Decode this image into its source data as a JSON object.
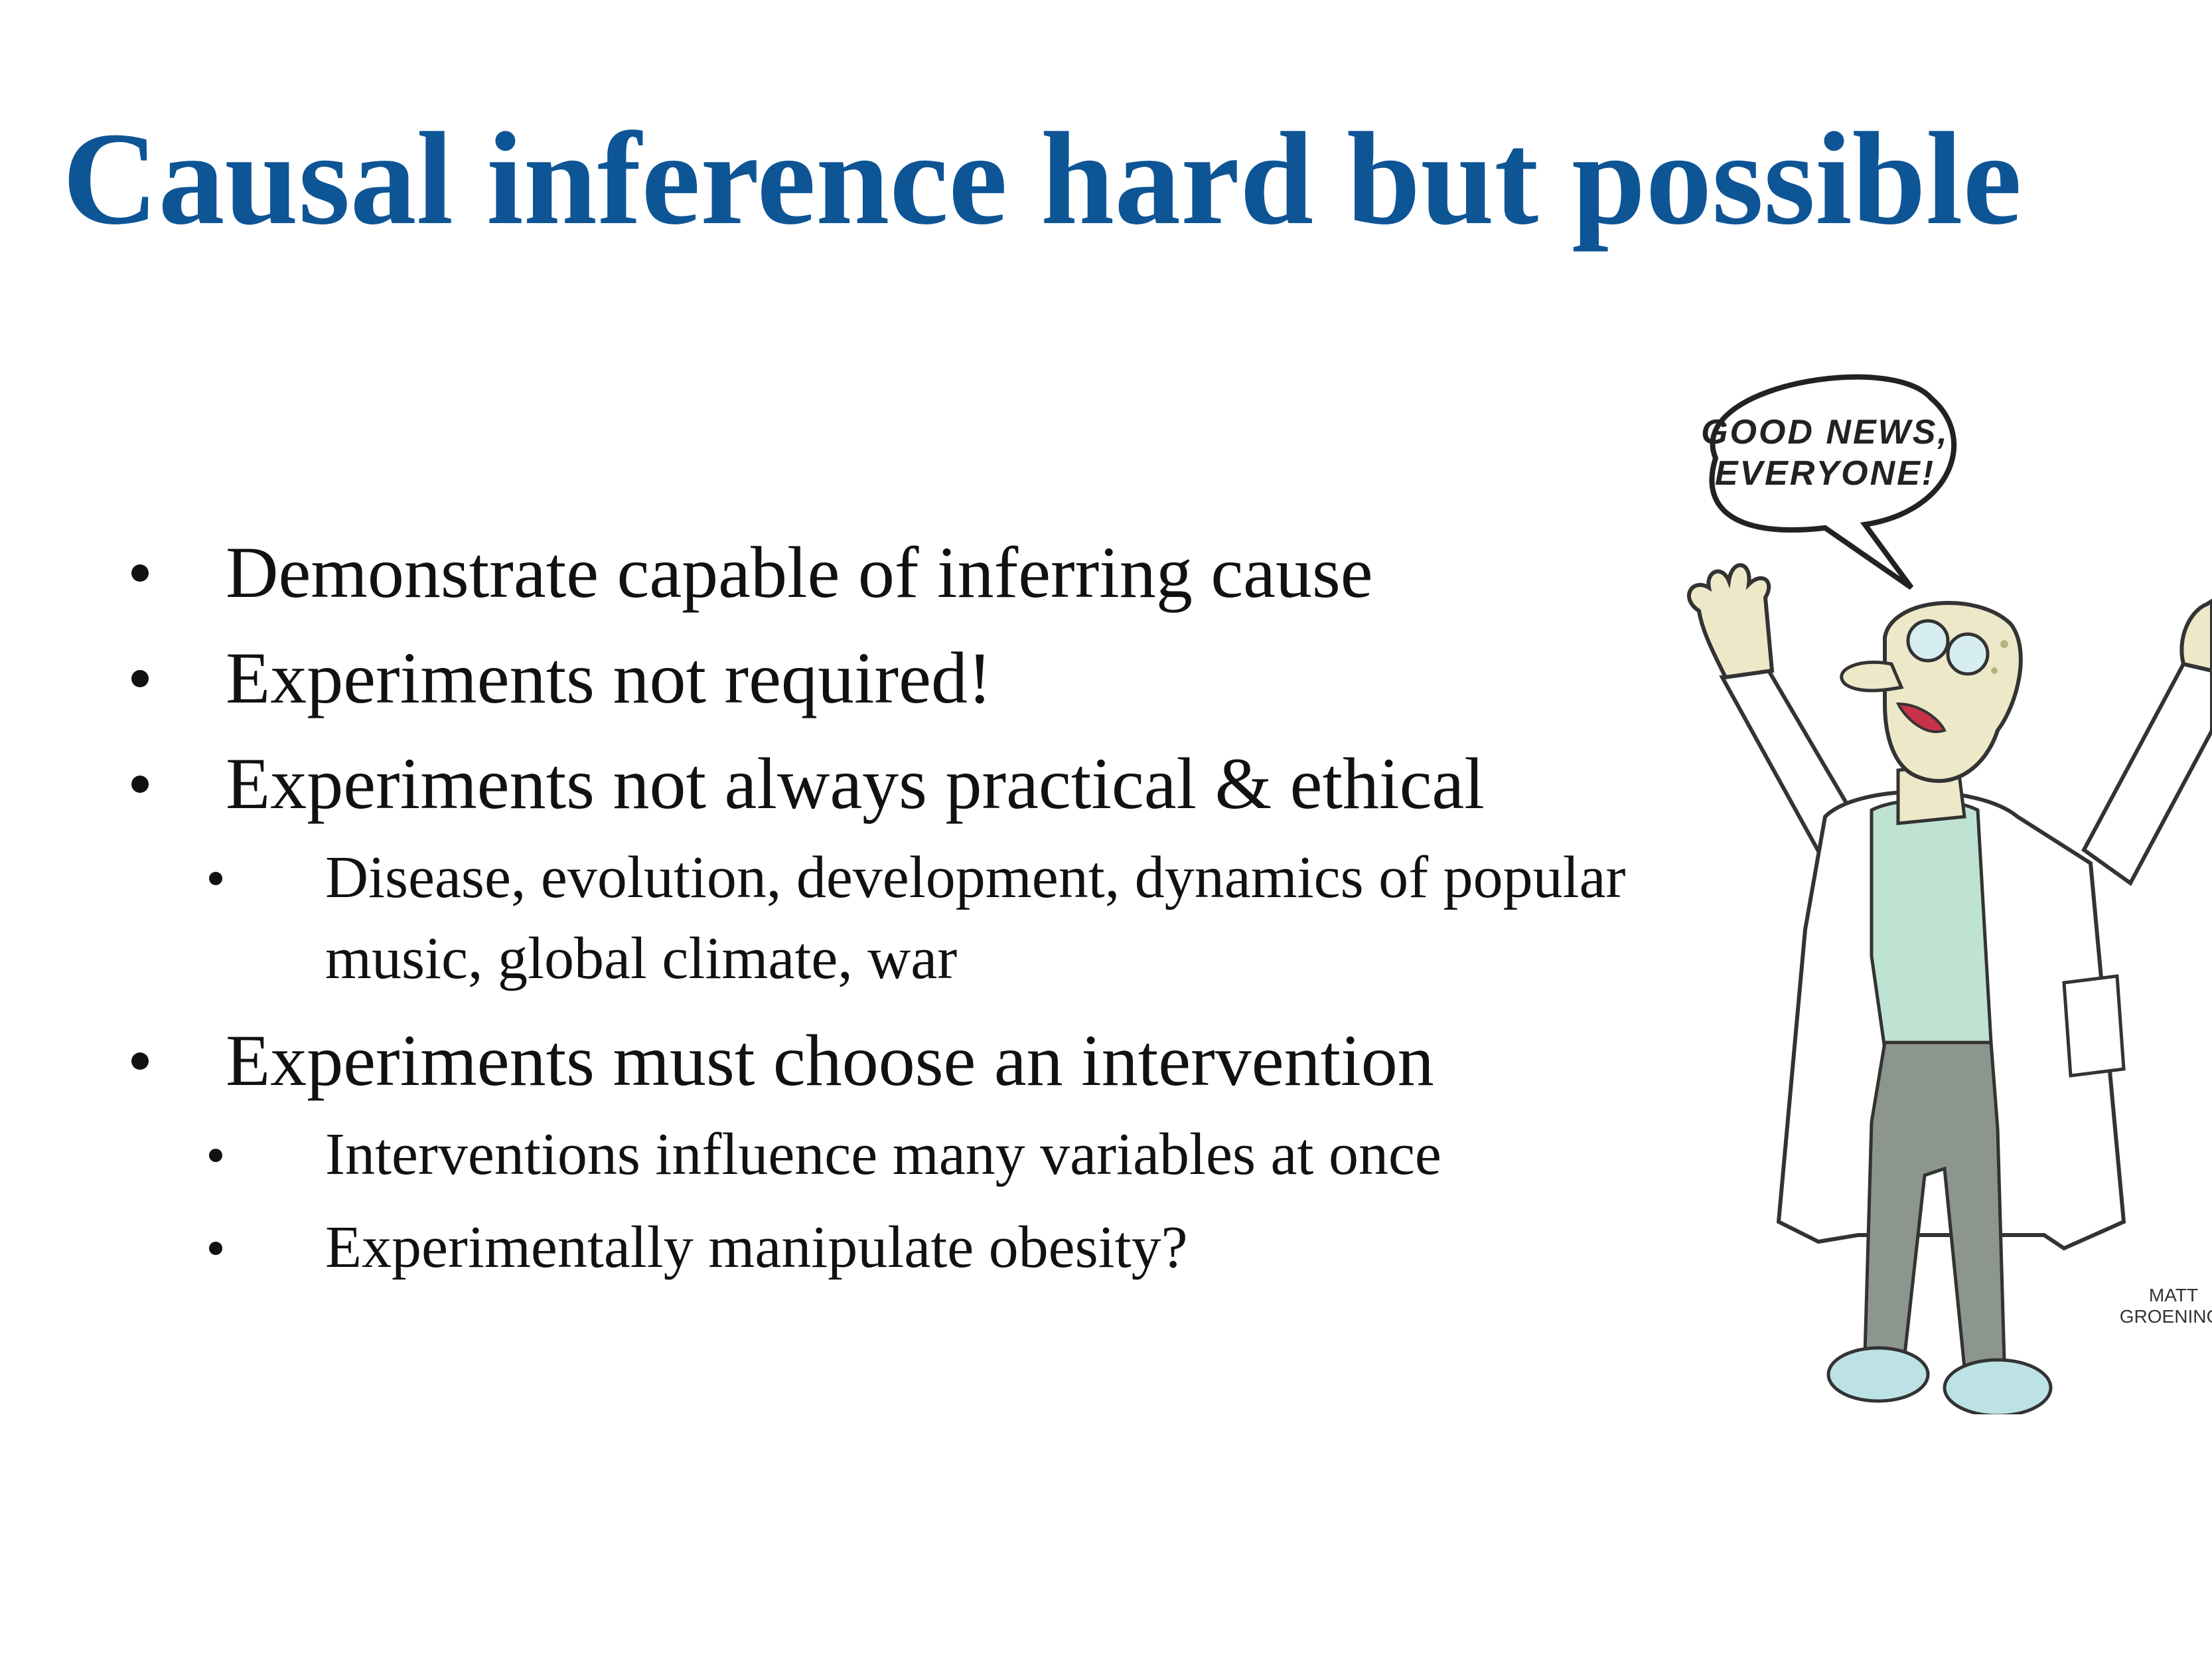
{
  "slide": {
    "title": "Causal inference hard but possible",
    "bullets": [
      {
        "text": "Demonstrate capable of inferring cause",
        "sub": []
      },
      {
        "text": "Experiments not required!",
        "sub": []
      },
      {
        "text": "Experiments not always practical & ethical",
        "sub": [
          "Disease, evolution, development, dynamics of popular music, global climate, war"
        ]
      },
      {
        "text": "Experiments must choose an intervention",
        "sub": [
          "Interventions influence many variables at once",
          "Experimentally manipulate obesity?"
        ]
      }
    ]
  },
  "cartoon": {
    "speech_line1": "GOOD NEWS,",
    "speech_line2": "EVERYONE!",
    "signature_line1": "MATT",
    "signature_line2": "GROENING"
  },
  "colors": {
    "title": "#0e5596",
    "text": "#111111",
    "coat": "#ffffff",
    "shirt": "#bfe3d3",
    "pants": "#8c968d",
    "skin": "#ede8c8",
    "slippers": "#bde2e6",
    "goggles": "#d6eef2"
  }
}
